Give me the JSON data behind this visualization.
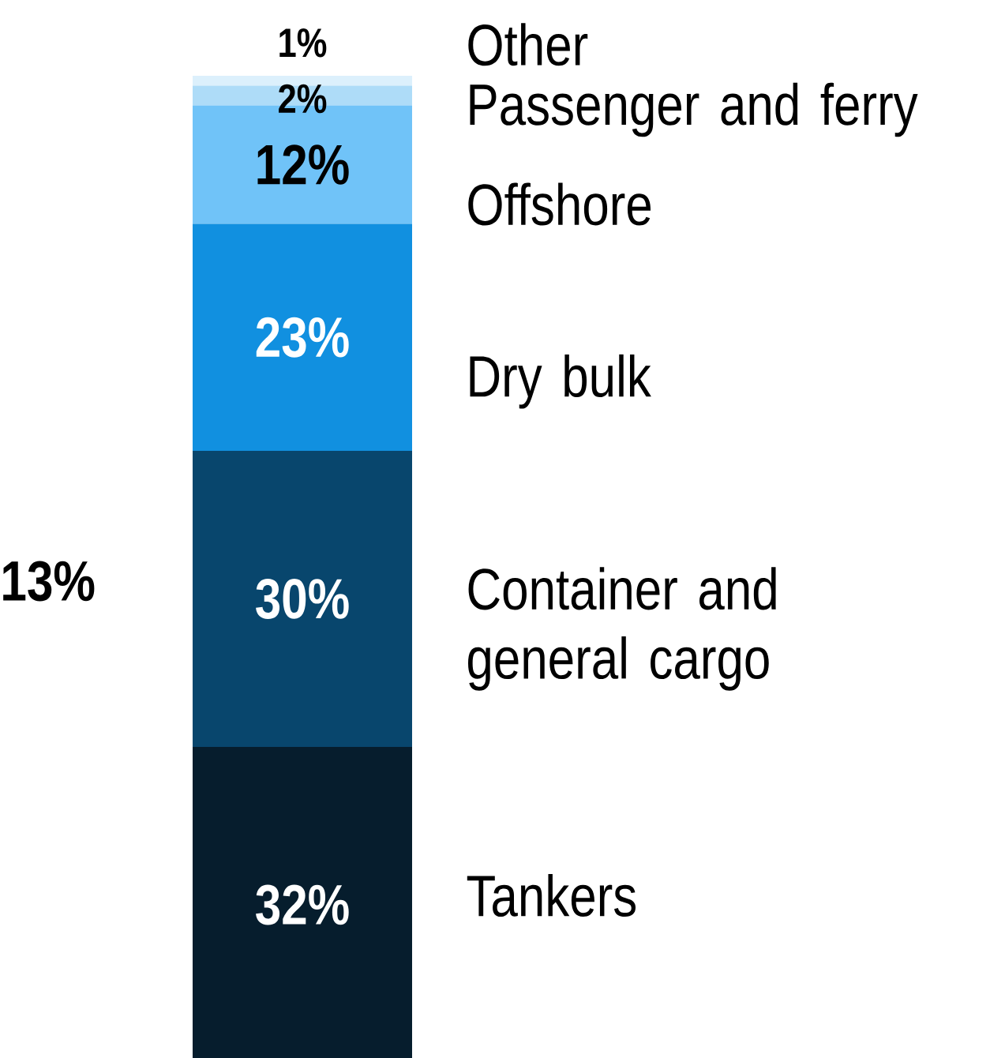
{
  "chart_data": {
    "type": "bar",
    "stacked": true,
    "categories": [
      null
    ],
    "ylim": [
      0,
      100
    ],
    "series": [
      {
        "name": "Tankers",
        "color": "#061d2d",
        "values": [
          32
        ],
        "value_labels": [
          "32%"
        ]
      },
      {
        "name": "Container and general cargo",
        "color": "#08466d",
        "values": [
          30
        ],
        "value_labels": [
          "30%"
        ]
      },
      {
        "name": "Dry bulk",
        "color": "#1190e0",
        "values": [
          23
        ],
        "value_labels": [
          "23%"
        ]
      },
      {
        "name": "Offshore",
        "color": "#70c3f8",
        "values": [
          12
        ],
        "value_labels": [
          "12%"
        ]
      },
      {
        "name": "Passenger and ferry",
        "color": "#aedcf8",
        "values": [
          2
        ],
        "value_labels": [
          "2%"
        ]
      },
      {
        "name": "Other",
        "color": "#dcf0fc",
        "values": [
          1
        ],
        "value_labels": [
          "1%"
        ]
      }
    ],
    "annotations": [
      "13%"
    ]
  }
}
